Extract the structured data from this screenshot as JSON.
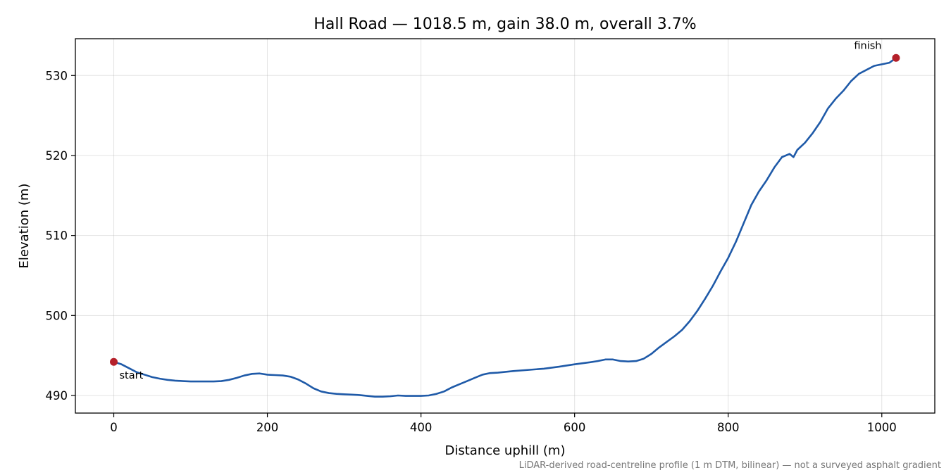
{
  "chart_data": {
    "type": "line",
    "title": "Hall Road — 1018.5 m, gain 38.0 m, overall 3.7%",
    "xlabel": "Distance uphill (m)",
    "ylabel": "Elevation (m)",
    "xlim": [
      -50,
      1069
    ],
    "ylim": [
      487.8,
      534.6
    ],
    "x_ticks": [
      0,
      200,
      400,
      600,
      800,
      1000
    ],
    "x_tick_labels": [
      "0",
      "200",
      "400",
      "600",
      "800",
      "1000"
    ],
    "y_ticks": [
      490,
      500,
      510,
      520,
      530
    ],
    "y_tick_labels": [
      "490",
      "500",
      "510",
      "520",
      "530"
    ],
    "grid": true,
    "line_color": "#1f5aa8",
    "marker_color": "#b5202a",
    "series": [
      {
        "x": [
          0,
          10,
          20,
          30,
          40,
          50,
          60,
          70,
          80,
          90,
          100,
          110,
          120,
          130,
          140,
          150,
          160,
          170,
          180,
          190,
          200,
          210,
          220,
          230,
          240,
          250,
          260,
          270,
          280,
          290,
          300,
          310,
          320,
          330,
          340,
          350,
          360,
          370,
          380,
          390,
          400,
          410,
          420,
          430,
          440,
          450,
          460,
          470,
          480,
          490,
          500,
          520,
          540,
          560,
          580,
          600,
          620,
          630,
          640,
          650,
          660,
          670,
          680,
          690,
          700,
          710,
          720,
          730,
          740,
          750,
          760,
          770,
          780,
          790,
          800,
          810,
          820,
          830,
          840,
          850,
          860,
          870,
          880,
          885,
          890,
          900,
          910,
          920,
          930,
          940,
          950,
          960,
          970,
          980,
          990,
          1000,
          1010,
          1018.5
        ],
        "y": [
          494.2,
          493.9,
          493.4,
          492.9,
          492.6,
          492.3,
          492.1,
          491.95,
          491.85,
          491.8,
          491.75,
          491.75,
          491.75,
          491.75,
          491.8,
          491.95,
          492.2,
          492.5,
          492.7,
          492.75,
          492.6,
          492.55,
          492.5,
          492.35,
          492.0,
          491.5,
          490.9,
          490.5,
          490.3,
          490.2,
          490.15,
          490.1,
          490.05,
          489.95,
          489.85,
          489.85,
          489.9,
          490.0,
          489.95,
          489.95,
          489.95,
          490.0,
          490.2,
          490.5,
          491.0,
          491.4,
          491.8,
          492.2,
          492.6,
          492.8,
          492.85,
          493.05,
          493.2,
          493.35,
          493.6,
          493.9,
          494.15,
          494.3,
          494.5,
          494.5,
          494.3,
          494.25,
          494.3,
          494.6,
          495.2,
          496.0,
          496.7,
          497.4,
          498.2,
          499.3,
          500.6,
          502.1,
          503.7,
          505.5,
          507.2,
          509.2,
          511.5,
          513.8,
          515.5,
          516.9,
          518.5,
          519.8,
          520.2,
          519.8,
          520.7,
          521.6,
          522.8,
          524.2,
          525.9,
          527.1,
          528.1,
          529.3,
          530.2,
          530.7,
          531.2,
          531.4,
          531.6,
          532.2
        ]
      }
    ],
    "annotations": [
      {
        "text": "start",
        "x": 0,
        "y": 494.2
      },
      {
        "text": "finish",
        "x": 1018.5,
        "y": 532.2
      }
    ],
    "footnote": "LiDAR-derived road-centreline profile (1 m DTM, bilinear) — not a surveyed asphalt gradient"
  }
}
